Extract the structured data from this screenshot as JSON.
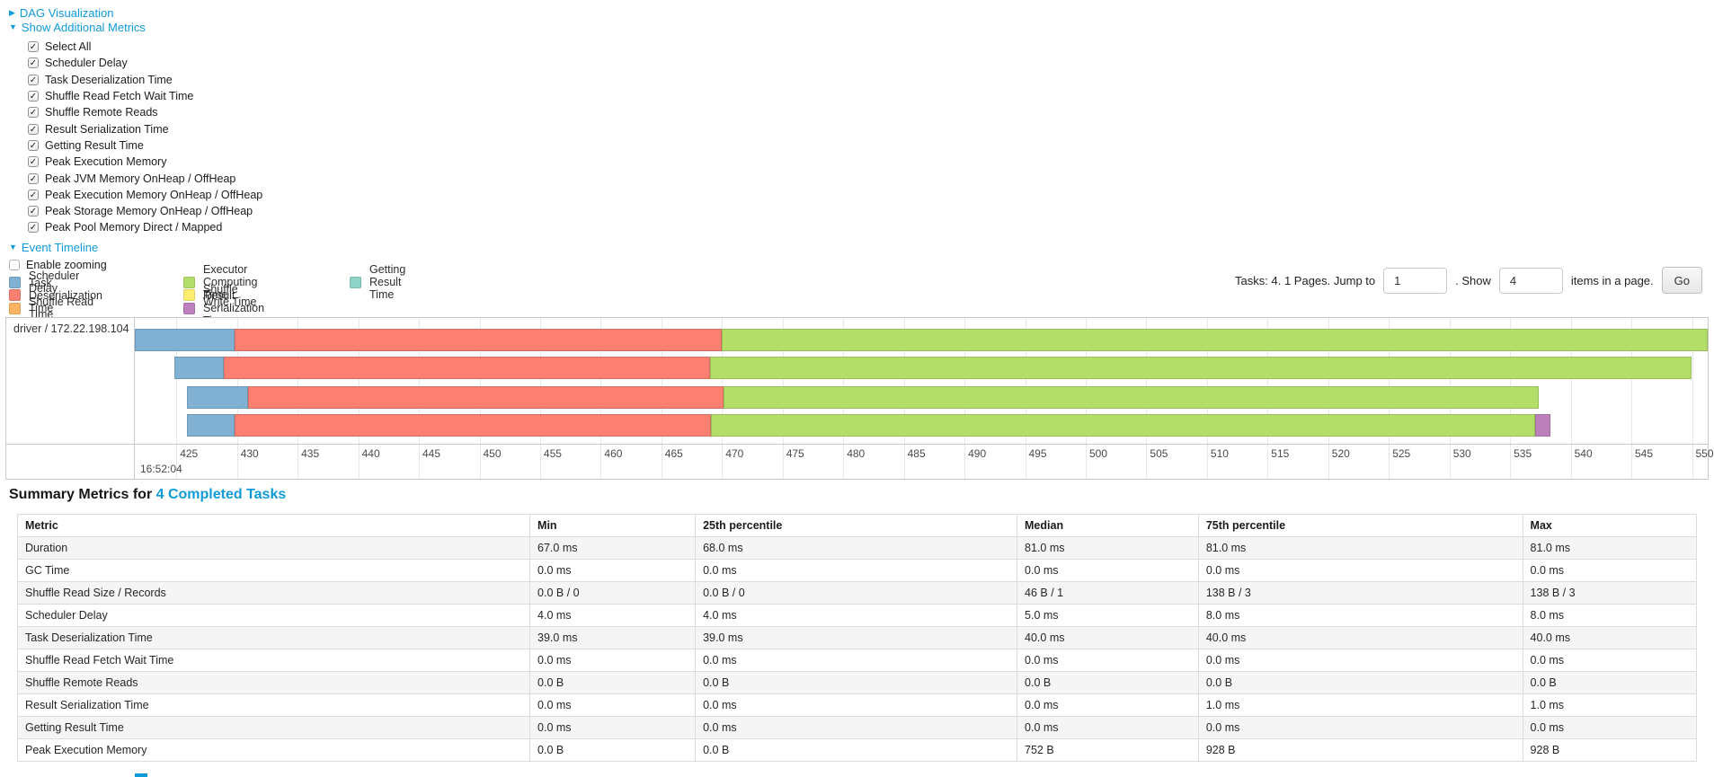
{
  "toggles": {
    "dag": {
      "label": "DAG Visualization",
      "arrow": "▶",
      "expanded": false
    },
    "metrics": {
      "label": "Show Additional Metrics",
      "arrow": "▼",
      "expanded": true
    },
    "timeline": {
      "label": "Event Timeline",
      "arrow": "▼",
      "expanded": true
    }
  },
  "metric_checkboxes": [
    {
      "label": "Select All",
      "checked": true
    },
    {
      "label": "Scheduler Delay",
      "checked": true
    },
    {
      "label": "Task Deserialization Time",
      "checked": true
    },
    {
      "label": "Shuffle Read Fetch Wait Time",
      "checked": true
    },
    {
      "label": "Shuffle Remote Reads",
      "checked": true
    },
    {
      "label": "Result Serialization Time",
      "checked": true
    },
    {
      "label": "Getting Result Time",
      "checked": true
    },
    {
      "label": "Peak Execution Memory",
      "checked": true
    },
    {
      "label": "Peak JVM Memory OnHeap / OffHeap",
      "checked": true
    },
    {
      "label": "Peak Execution Memory OnHeap / OffHeap",
      "checked": true
    },
    {
      "label": "Peak Storage Memory OnHeap / OffHeap",
      "checked": true
    },
    {
      "label": "Peak Pool Memory Direct / Mapped",
      "checked": true
    }
  ],
  "enable_zooming": {
    "label": "Enable zooming",
    "checked": false
  },
  "legend": {
    "columns": [
      [
        {
          "key": "scheduler_delay",
          "label": "Scheduler Delay",
          "color": "#80B1D3"
        },
        {
          "key": "task_deserialization",
          "label": "Task Deserialization Time",
          "color": "#FB8072"
        },
        {
          "key": "shuffle_read",
          "label": "Shuffle Read Time",
          "color": "#FDB462"
        }
      ],
      [
        {
          "key": "executor_computing",
          "label": "Executor Computing Time",
          "color": "#B3DE69"
        },
        {
          "key": "shuffle_write",
          "label": "Shuffle Write Time",
          "color": "#FFED6F"
        },
        {
          "key": "result_serialization",
          "label": "Result Serialization Time",
          "color": "#BC80BD"
        }
      ],
      [
        {
          "key": "getting_result",
          "label": "Getting Result Time",
          "color": "#8DD3C7"
        }
      ]
    ]
  },
  "pagination": {
    "prefix": "Tasks: 4. 1 Pages. Jump to",
    "jump_value": "1",
    "mid": ". Show",
    "show_value": "4",
    "suffix": "items in a page.",
    "go_label": "Go"
  },
  "chart_data": {
    "type": "timeline",
    "group_label": "driver / 172.22.198.104",
    "time_unit": "milliseconds within second 16:52:04",
    "axis": {
      "min": 421.5,
      "max": 551.3,
      "tick_first": 425,
      "tick_last": 550,
      "tick_step": 5,
      "major_time_label": "16:52:04"
    },
    "segment_colors": {
      "scheduler_delay": "#80B1D3",
      "task_deserialization": "#FB8072",
      "executor_computing": "#B3DE69",
      "result_serialization": "#BC80BD"
    },
    "tasks": [
      {
        "start": 421.6,
        "scheduler_delay_end": 429.8,
        "deserialization_end": 470.0,
        "computing_end": 551.3
      },
      {
        "start": 424.8,
        "scheduler_delay_end": 428.9,
        "deserialization_end": 469.0,
        "computing_end": 550.0
      },
      {
        "start": 425.9,
        "scheduler_delay_end": 430.9,
        "deserialization_end": 470.1,
        "computing_end": 537.4
      },
      {
        "start": 425.9,
        "scheduler_delay_end": 429.8,
        "deserialization_end": 469.1,
        "computing_end": 537.1,
        "result_serialization_end": 538.3
      }
    ]
  },
  "summary": {
    "title_prefix": "Summary Metrics for ",
    "title_link": "4 Completed Tasks",
    "columns": [
      "Metric",
      "Min",
      "25th percentile",
      "Median",
      "75th percentile",
      "Max"
    ],
    "col_widths": [
      "30.5%",
      "9.85%",
      "19.15%",
      "10.8%",
      "19.3%",
      "10.35%"
    ],
    "rows": [
      [
        "Duration",
        "67.0 ms",
        "68.0 ms",
        "81.0 ms",
        "81.0 ms",
        "81.0 ms"
      ],
      [
        "GC Time",
        "0.0 ms",
        "0.0 ms",
        "0.0 ms",
        "0.0 ms",
        "0.0 ms"
      ],
      [
        "Shuffle Read Size / Records",
        "0.0 B / 0",
        "0.0 B / 0",
        "46 B / 1",
        "138 B / 3",
        "138 B / 3"
      ],
      [
        "Scheduler Delay",
        "4.0 ms",
        "4.0 ms",
        "5.0 ms",
        "8.0 ms",
        "8.0 ms"
      ],
      [
        "Task Deserialization Time",
        "39.0 ms",
        "39.0 ms",
        "40.0 ms",
        "40.0 ms",
        "40.0 ms"
      ],
      [
        "Shuffle Read Fetch Wait Time",
        "0.0 ms",
        "0.0 ms",
        "0.0 ms",
        "0.0 ms",
        "0.0 ms"
      ],
      [
        "Shuffle Remote Reads",
        "0.0 B",
        "0.0 B",
        "0.0 B",
        "0.0 B",
        "0.0 B"
      ],
      [
        "Result Serialization Time",
        "0.0 ms",
        "0.0 ms",
        "0.0 ms",
        "1.0 ms",
        "1.0 ms"
      ],
      [
        "Getting Result Time",
        "0.0 ms",
        "0.0 ms",
        "0.0 ms",
        "0.0 ms",
        "0.0 ms"
      ],
      [
        "Peak Execution Memory",
        "0.0 B",
        "0.0 B",
        "752 B",
        "928 B",
        "928 B"
      ]
    ]
  }
}
